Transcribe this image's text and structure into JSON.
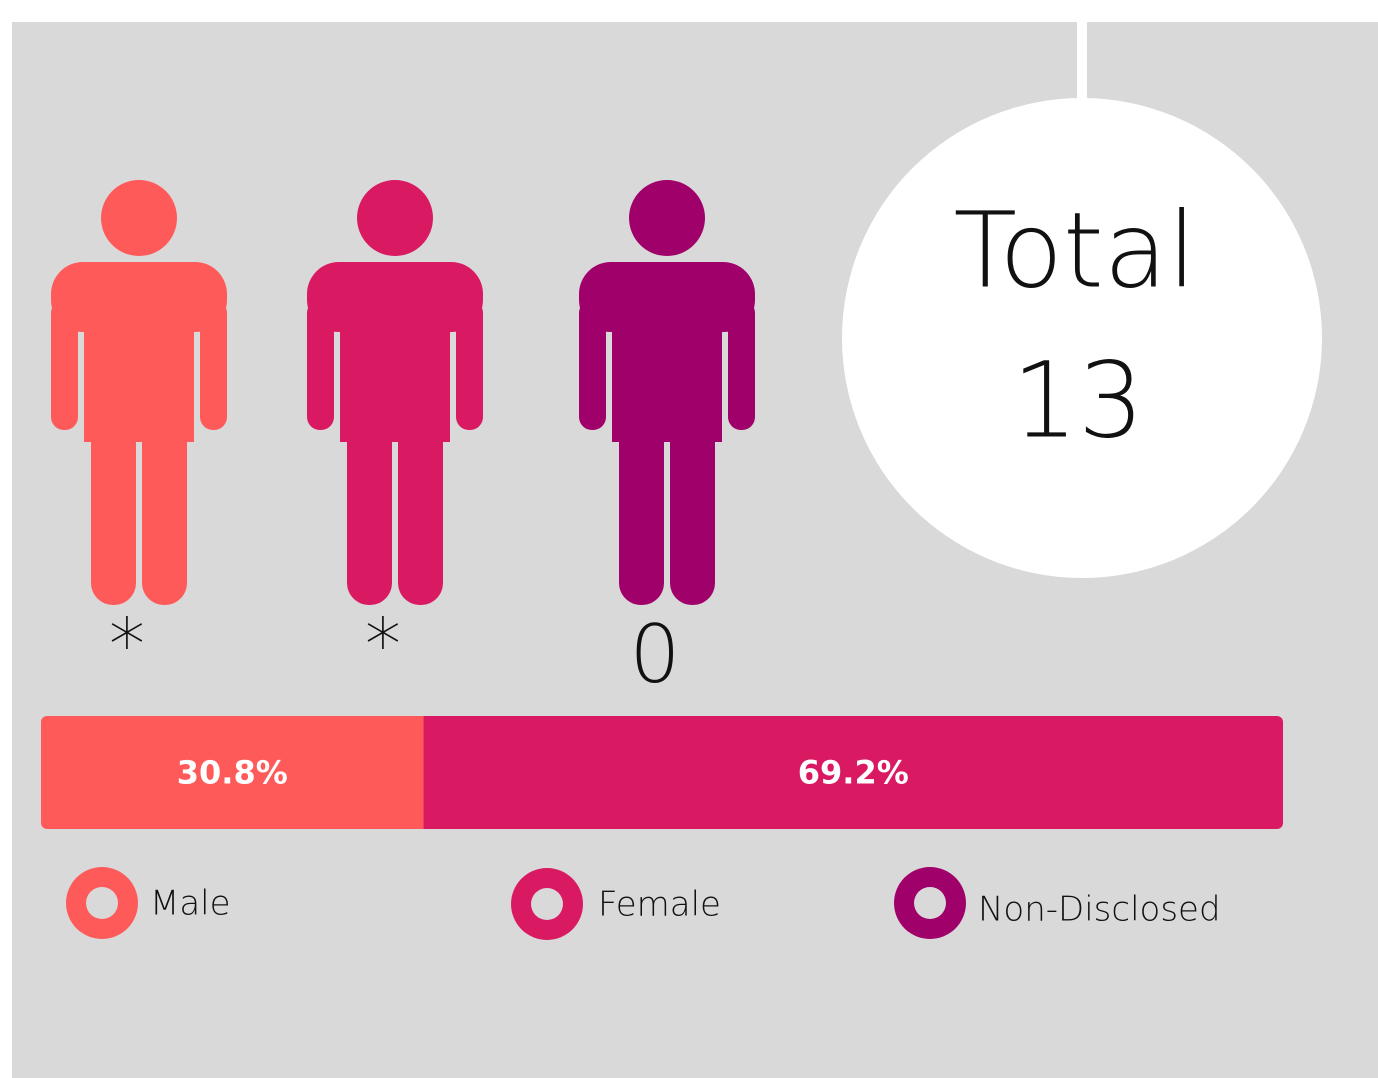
{
  "chart_data": {
    "type": "stacked_bar",
    "series": [
      {
        "name": "Male",
        "color": "#ff5a5a",
        "values": [
          30.8
        ],
        "value_labels": [
          "30.8%"
        ]
      },
      {
        "name": "Female",
        "color": "#d91a62",
        "values": [
          69.2
        ],
        "value_labels": [
          "69.2%"
        ]
      },
      {
        "name": "Non-Disclosed",
        "color": "#a0006a",
        "values": [
          0
        ]
      }
    ],
    "xlim": [
      0,
      100
    ]
  },
  "figures": [
    {
      "count": "*"
    },
    {
      "count": "*"
    },
    {
      "count": 0
    }
  ],
  "total": {
    "label": "Total",
    "value": 13
  }
}
